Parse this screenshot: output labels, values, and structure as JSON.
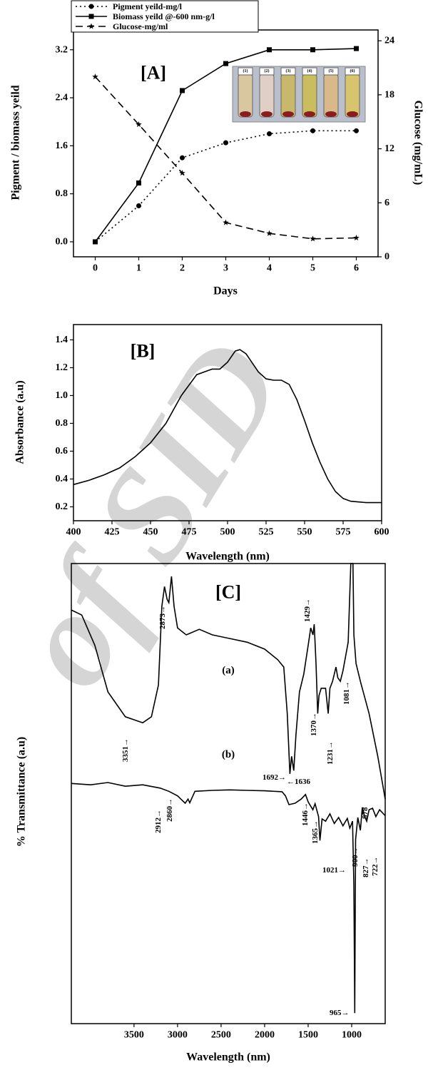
{
  "watermark": "of SID",
  "chart_data": [
    {
      "type": "line",
      "panel_label": "[A]",
      "x": [
        0,
        1,
        2,
        3,
        4,
        5,
        6
      ],
      "xlim": [
        -0.5,
        6.5
      ],
      "xticks": [
        0,
        1,
        2,
        3,
        4,
        5,
        6
      ],
      "ylim": [
        -0.25,
        3.53
      ],
      "yticks": [
        {
          "value": 0,
          "label": "0.0"
        },
        0.8,
        1.6,
        2.4,
        3.2
      ],
      "y2lim": [
        0,
        25.2
      ],
      "y2ticks": [
        0,
        6,
        12,
        18,
        24
      ],
      "xlabel": "Days",
      "ylabel": "Pigment / biomass yeild",
      "y2label": "Glucose (mg/mL)",
      "inset_labels": [
        "(1)",
        "(2)",
        "(3)",
        "(4)",
        "(5)",
        "(6)"
      ],
      "series": [
        {
          "name": "Pigment yeild-mg/l",
          "color": "#000000",
          "style": "dotted",
          "marker": "circle",
          "values": [
            0,
            0.6,
            1.4,
            1.65,
            1.8,
            1.85,
            1.85
          ]
        },
        {
          "name": "Biomass yeild @-600 nm-g/l",
          "color": "#000000",
          "style": "solid",
          "marker": "square",
          "values": [
            0,
            0.98,
            2.52,
            2.97,
            3.2,
            3.2,
            3.22
          ]
        },
        {
          "name": "Glucose-mg/ml",
          "color": "#000000",
          "style": "dashed",
          "marker": "star",
          "axis": "y2",
          "values": [
            20,
            14.7,
            9.3,
            3.8,
            2.6,
            2.0,
            2.1
          ]
        }
      ]
    },
    {
      "type": "line",
      "panel_label": "[B]",
      "x": [
        400,
        410,
        420,
        430,
        440,
        450,
        460,
        470,
        480,
        490,
        495,
        500,
        505,
        508,
        512,
        520,
        525,
        530,
        535,
        540,
        545,
        550,
        555,
        560,
        565,
        570,
        575,
        580,
        590,
        600
      ],
      "xlim": [
        400,
        600
      ],
      "xticks": [
        400,
        425,
        450,
        475,
        500,
        525,
        550,
        575,
        600
      ],
      "ylim": [
        0.1,
        1.51
      ],
      "yticks": [
        0.2,
        0.4,
        0.6,
        0.8,
        {
          "value": 1,
          "label": "1.0"
        },
        1.2,
        1.4
      ],
      "xlabel": "Wavelength (nm)",
      "ylabel": "Absorbance (a.u)",
      "series": [
        {
          "color": "#000000",
          "style": "solid",
          "values": [
            0.36,
            0.39,
            0.43,
            0.48,
            0.56,
            0.66,
            0.8,
            1.0,
            1.15,
            1.19,
            1.19,
            1.24,
            1.32,
            1.33,
            1.3,
            1.17,
            1.12,
            1.11,
            1.11,
            1.08,
            0.97,
            0.82,
            0.66,
            0.52,
            0.4,
            0.31,
            0.26,
            0.24,
            0.23,
            0.23
          ]
        }
      ]
    },
    {
      "type": "line",
      "panel_label": "[C]",
      "xlim": [
        4220,
        615
      ],
      "xticks": [
        3500,
        3000,
        2500,
        2000,
        1500,
        1000
      ],
      "ylim": [
        0,
        100
      ],
      "xlabel": "Wavelength (nm)",
      "ylabel": "% Transmittance (a.u)",
      "series": [
        {
          "name": "(a)",
          "color": "#000000",
          "style": "solid",
          "x": [
            4220,
            4100,
            3950,
            3800,
            3600,
            3400,
            3300,
            3220,
            3180,
            3150,
            3120,
            3100,
            3070,
            3040,
            3000,
            2900,
            2750,
            2600,
            2400,
            2200,
            2000,
            1850,
            1780,
            1740,
            1710,
            1690,
            1665,
            1640,
            1600,
            1550,
            1500,
            1470,
            1445,
            1430,
            1410,
            1390,
            1375,
            1350,
            1300,
            1270,
            1250,
            1220,
            1180,
            1160,
            1130,
            1100,
            1040,
            1010,
            1000,
            985,
            975,
            950,
            900,
            800,
            700,
            615
          ],
          "values": [
            89.9,
            88.8,
            82.2,
            72.1,
            66.7,
            65.4,
            66.7,
            73.6,
            90.7,
            95.0,
            92.2,
            91.5,
            97.2,
            90.7,
            86.0,
            84.5,
            85.7,
            84.5,
            83.7,
            82.9,
            81.4,
            79.1,
            77.5,
            67.4,
            54.3,
            58.1,
            55.0,
            62.8,
            72.1,
            76.0,
            82.2,
            86.0,
            84.5,
            86.8,
            78.3,
            67.4,
            71.3,
            72.9,
            72.9,
            67.4,
            72.9,
            74.4,
            77.5,
            75.2,
            74.4,
            76.7,
            82.9,
            100,
            100,
            100,
            84.5,
            78.3,
            74.4,
            67.4,
            58.1,
            48.8
          ],
          "annotations": [
            "3351→",
            "2873→",
            "1692→",
            "←1636",
            "1429→",
            "1370→",
            "1231→",
            "1081→"
          ]
        },
        {
          "name": "(b)",
          "color": "#000000",
          "style": "solid",
          "x": [
            4220,
            4000,
            3800,
            3600,
            3400,
            3200,
            3100,
            3000,
            2912,
            2880,
            2860,
            2800,
            2600,
            2400,
            2200,
            2000,
            1800,
            1760,
            1720,
            1650,
            1580,
            1530,
            1500,
            1446,
            1420,
            1380,
            1365,
            1340,
            1300,
            1250,
            1200,
            1150,
            1100,
            1050,
            1021,
            990,
            975,
            965,
            955,
            930,
            900,
            878,
            850,
            827,
            800,
            760,
            722,
            680,
            615
          ],
          "values": [
            52.2,
            51.9,
            52.4,
            51.6,
            51.9,
            51.2,
            50.5,
            49.5,
            47.9,
            48.8,
            48.0,
            50.5,
            50.7,
            50.8,
            50.7,
            50.6,
            50.4,
            49.5,
            47.6,
            47.9,
            48.8,
            49.8,
            48.2,
            46.5,
            47.8,
            45.0,
            39.8,
            44.5,
            44.0,
            45.6,
            43.5,
            44.8,
            43.0,
            44.6,
            42.5,
            44.0,
            30,
            2.3,
            40,
            44.8,
            42.0,
            47.0,
            45.0,
            44.0,
            46.5,
            46.8,
            45.0,
            46.5,
            45.2
          ],
          "annotations": [
            "2912→",
            "2860→",
            "1446→",
            "1365→",
            "1021→",
            "965→",
            "900→",
            "878",
            "827→",
            "722→"
          ]
        }
      ]
    }
  ]
}
